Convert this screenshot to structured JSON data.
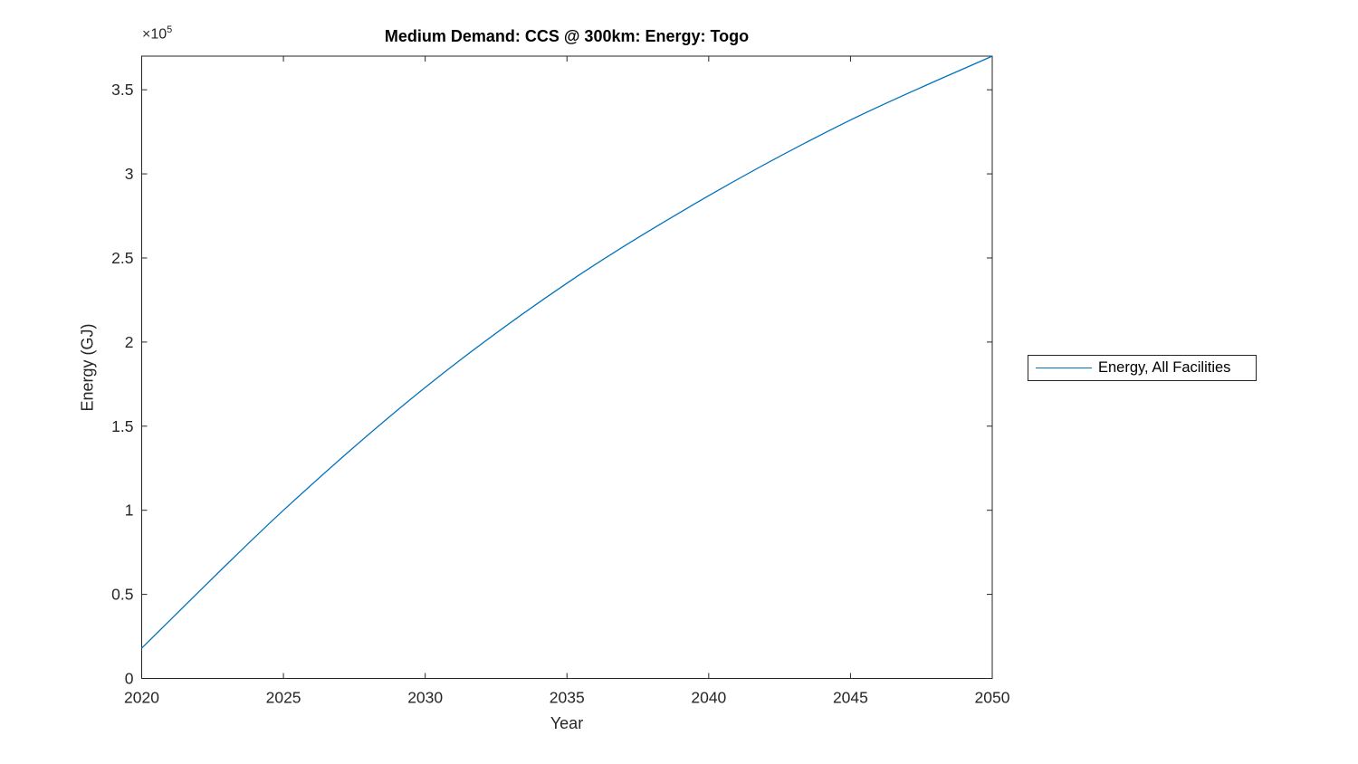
{
  "chart": {
    "title": "Medium Demand: CCS @ 300km: Energy: Togo",
    "xlabel": "Year",
    "ylabel": "Energy (GJ)",
    "y_exponent_base": "×10",
    "y_exponent_power": "5",
    "legend": [
      "Energy, All Facilities"
    ]
  },
  "chart_data": {
    "type": "line",
    "title": "Medium Demand: CCS @ 300km: Energy: Togo",
    "xlabel": "Year",
    "ylabel": "Energy (GJ)",
    "y_unit_multiplier": 100000,
    "xlim": [
      2020,
      2050
    ],
    "ylim_e5": [
      0,
      3.7
    ],
    "xticks": [
      2020,
      2025,
      2030,
      2035,
      2040,
      2045,
      2050
    ],
    "xtick_labels": [
      "2020",
      "2025",
      "2030",
      "2035",
      "2040",
      "2045",
      "2050"
    ],
    "yticks_e5": [
      0,
      0.5,
      1,
      1.5,
      2,
      2.5,
      3,
      3.5
    ],
    "ytick_labels": [
      "0",
      "0.5",
      "1",
      "1.5",
      "2",
      "2.5",
      "3",
      "3.5"
    ],
    "grid": false,
    "legend_position": "right-outside",
    "series": [
      {
        "name": "Energy, All Facilities",
        "color": "#0072BD",
        "x": [
          2020,
          2025,
          2030,
          2035,
          2040,
          2045,
          2050
        ],
        "y_e5": [
          0.18,
          1.0,
          1.73,
          2.35,
          2.87,
          3.32,
          3.7
        ],
        "y_GJ": [
          18000,
          100000,
          173000,
          235000,
          287000,
          332000,
          370000
        ]
      }
    ],
    "colors": {
      "line": "#0072BD",
      "axes": "#262626",
      "title_text": "#000000",
      "background": "#ffffff"
    }
  }
}
